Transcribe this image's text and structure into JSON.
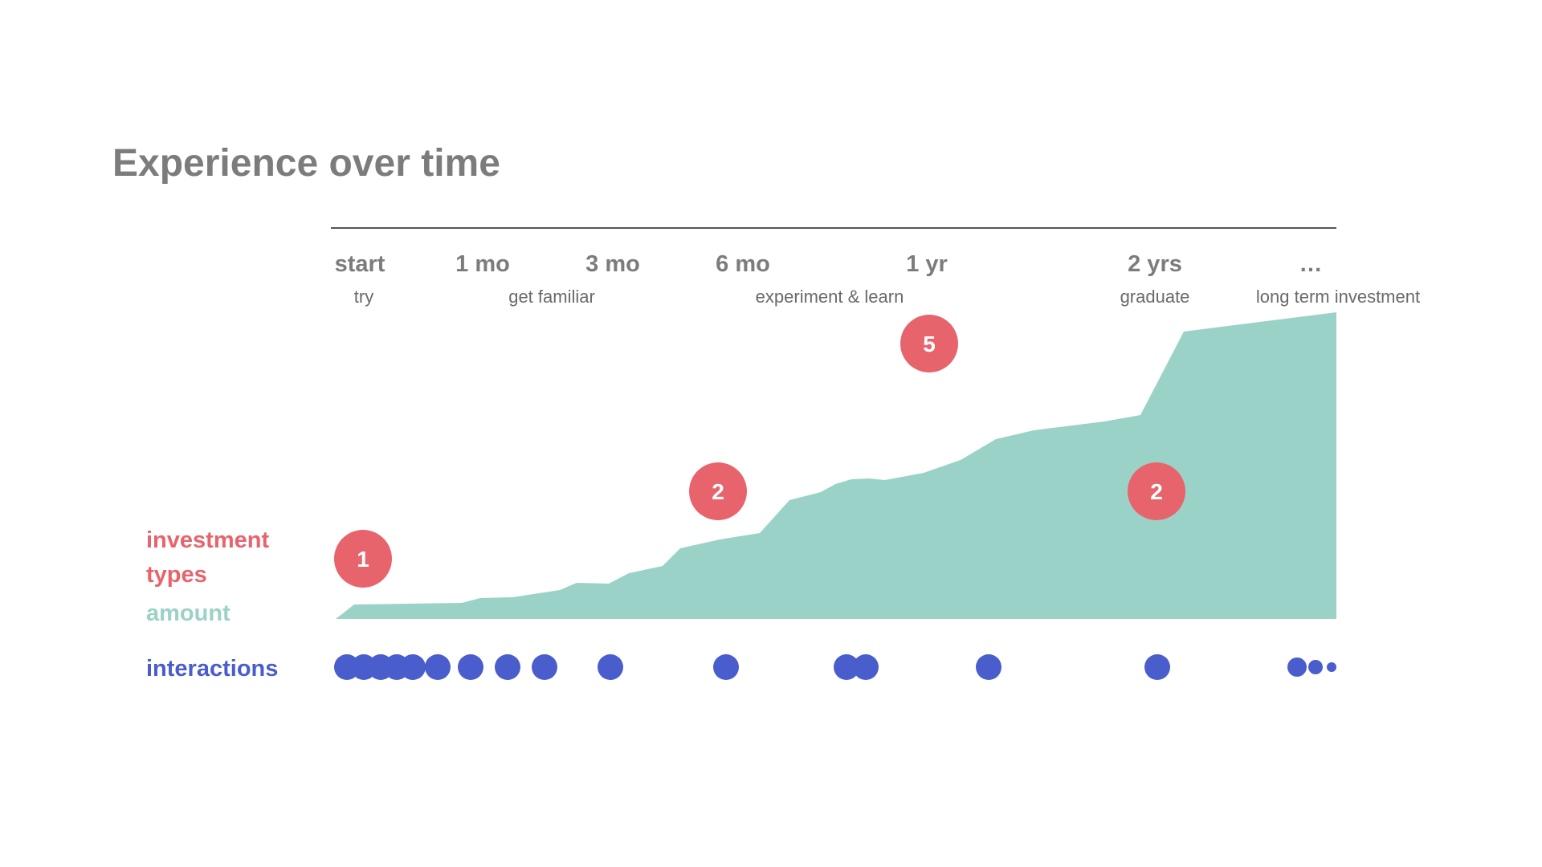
{
  "title": "Experience over time",
  "colors": {
    "title": "#7c7c7c",
    "axis_line": "#555555",
    "investment_types": "#e8646c",
    "amount": "#9bd2c7",
    "interactions": "#4a5dcc",
    "badge_text": "#ffffff"
  },
  "timeline": {
    "ticks": [
      "start",
      "1 mo",
      "3 mo",
      "6 mo",
      "1 yr",
      "2 yrs",
      "…"
    ],
    "phases": [
      "try",
      "get familiar",
      "experiment & learn",
      "graduate",
      "long term investment"
    ]
  },
  "legend": {
    "investment_types_line1": "investment",
    "investment_types_line2": "types",
    "amount": "amount",
    "interactions": "interactions"
  },
  "investment_type_badges": [
    "1",
    "2",
    "5",
    "2"
  ],
  "interaction_count_rendered": 19
}
